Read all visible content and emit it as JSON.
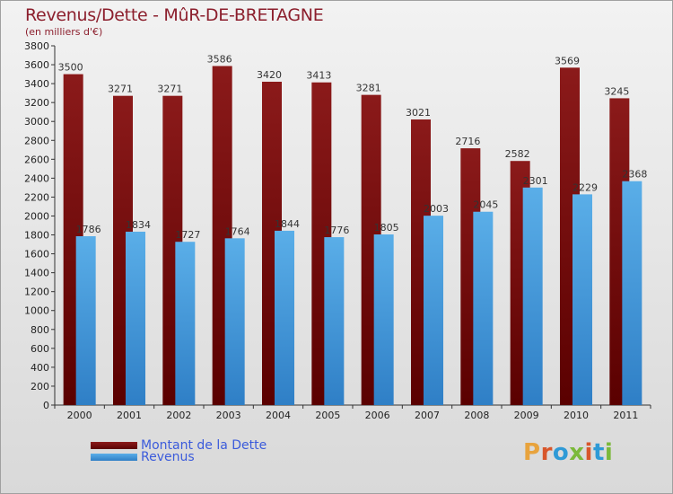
{
  "header": {
    "title": "Revenus/Dette - MûR-DE-BRETAGNE",
    "subtitle": "(en milliers d'€)"
  },
  "legend": {
    "debt_label": "Montant de la Dette",
    "revenue_label": "Revenus"
  },
  "logo": {
    "text": "Proxiti",
    "letter_colors": [
      "#e8a33d",
      "#d8562b",
      "#2f9ad6",
      "#7bb93a",
      "#d8562b",
      "#2f9ad6",
      "#7bb93a"
    ]
  },
  "colors": {
    "debt": "#8b1a1a",
    "debt_dark": "#5a0000",
    "revenue": "#5aaee8",
    "revenue_dark": "#2f7fc6",
    "title": "#8c1f2d"
  },
  "chart_data": {
    "type": "bar",
    "categories": [
      "2000",
      "2001",
      "2002",
      "2003",
      "2004",
      "2005",
      "2006",
      "2007",
      "2008",
      "2009",
      "2010",
      "2011"
    ],
    "series": [
      {
        "name": "Montant de la Dette",
        "values": [
          3500,
          3271,
          3271,
          3586,
          3420,
          3413,
          3281,
          3021,
          2716,
          2582,
          3569,
          3245
        ]
      },
      {
        "name": "Revenus",
        "values": [
          1786,
          1834,
          1727,
          1764,
          1844,
          1776,
          1805,
          2003,
          2045,
          2301,
          2229,
          2368
        ]
      }
    ],
    "title": "Revenus/Dette - MûR-DE-BRETAGNE",
    "subtitle": "(en milliers d'€)",
    "xlabel": "",
    "ylabel": "",
    "ylim": [
      0,
      3800
    ],
    "ytick_step": 200,
    "grid": false,
    "legend_position": "bottom-left"
  }
}
